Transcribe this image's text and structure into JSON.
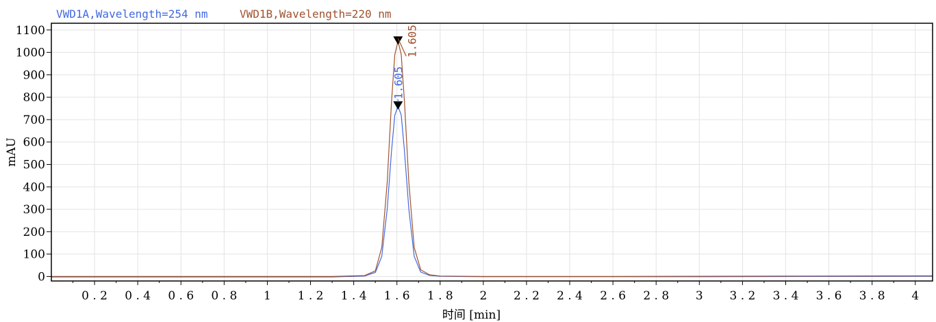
{
  "chart_data": {
    "type": "line",
    "title": "",
    "legend": [
      {
        "label": "VWD1A,Wavelength=254 nm",
        "color": "#4169e1"
      },
      {
        "label": "VWD1B,Wavelength=220 nm",
        "color": "#a0522d"
      }
    ],
    "xlabel": "时间 [min]",
    "ylabel": "mAU",
    "xlim": [
      0.0,
      4.08
    ],
    "ylim": [
      -20,
      1130
    ],
    "x_ticks": [
      "0.2",
      "0.4",
      "0.6",
      "0.8",
      "1",
      "1.2",
      "1.4",
      "1.6",
      "1.8",
      "2",
      "2.2",
      "2.4",
      "2.6",
      "2.8",
      "3",
      "3.2",
      "3.4",
      "3.6",
      "3.8",
      "4"
    ],
    "y_ticks": [
      "0",
      "100",
      "200",
      "300",
      "400",
      "500",
      "600",
      "700",
      "800",
      "900",
      "1000",
      "1100"
    ],
    "grid": true,
    "series": [
      {
        "name": "VWD1A,Wavelength=254 nm",
        "color": "#4169e1",
        "x": [
          0.0,
          0.5,
          1.0,
          1.3,
          1.45,
          1.5,
          1.53,
          1.555,
          1.575,
          1.59,
          1.605,
          1.62,
          1.635,
          1.655,
          1.68,
          1.71,
          1.75,
          1.8,
          2.0,
          2.5,
          3.0,
          3.5,
          4.08
        ],
        "values": [
          -2,
          -2,
          -2,
          -2,
          2,
          18,
          90,
          300,
          560,
          720,
          760,
          720,
          560,
          300,
          90,
          20,
          5,
          1,
          -1,
          -1,
          -1,
          0,
          1
        ]
      },
      {
        "name": "VWD1B,Wavelength=220 nm",
        "color": "#a0522d",
        "x": [
          0.0,
          0.5,
          1.0,
          1.3,
          1.45,
          1.5,
          1.53,
          1.555,
          1.575,
          1.59,
          1.605,
          1.62,
          1.635,
          1.655,
          1.68,
          1.71,
          1.75,
          1.8,
          2.0,
          2.5,
          3.0,
          3.5,
          4.08
        ],
        "values": [
          0,
          0,
          0,
          0,
          4,
          25,
          130,
          420,
          780,
          990,
          1050,
          990,
          780,
          420,
          130,
          30,
          8,
          2,
          0,
          0,
          1,
          2,
          3
        ]
      }
    ],
    "peaks": [
      {
        "series": "VWD1A,Wavelength=254 nm",
        "label": "1.605",
        "x": 1.605,
        "y": 760,
        "color": "#4169e1"
      },
      {
        "series": "VWD1B,Wavelength=220 nm",
        "label": "1.605",
        "x": 1.605,
        "y": 1050,
        "color": "#a0522d"
      }
    ]
  }
}
